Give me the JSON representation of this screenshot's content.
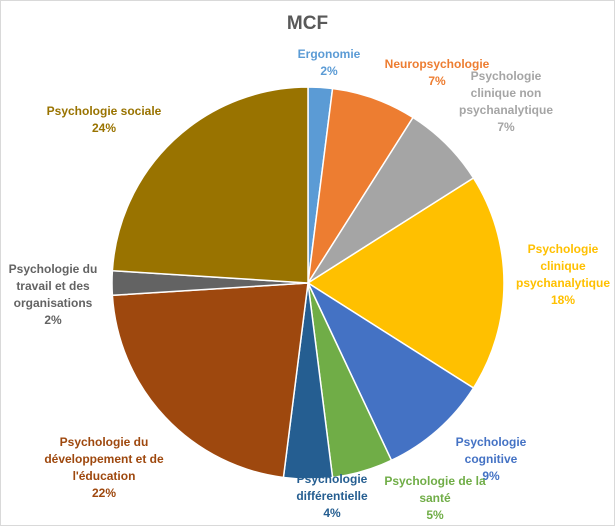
{
  "chart_data": {
    "type": "pie",
    "title": "MCF",
    "categories": [
      "Ergonomie",
      "Neuropsychologie",
      "Psychologie clinique non psychanalytique",
      "Psychologie clinique psychanalytique",
      "Psychologie cognitive",
      "Psychologie de la santé",
      "Psychologie différentielle",
      "Psychologie du développement et de l'éducation",
      "Psychologie du travail et des organisations",
      "Psychologie sociale"
    ],
    "values": [
      2,
      7,
      7,
      18,
      9,
      5,
      4,
      22,
      2,
      24
    ],
    "value_labels": [
      "2%",
      "7%",
      "7%",
      "18%",
      "9%",
      "5%",
      "4%",
      "22%",
      "2%",
      "24%"
    ],
    "colors": [
      "#5b9bd5",
      "#ed7d31",
      "#a5a5a5",
      "#ffc000",
      "#4472c4",
      "#70ad47",
      "#255e91",
      "#9e480e",
      "#636363",
      "#997300"
    ]
  }
}
